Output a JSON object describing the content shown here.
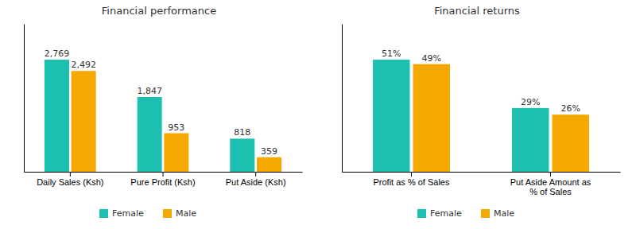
{
  "chart_data": [
    {
      "type": "bar",
      "title": "Financial performance",
      "categories": [
        "Daily Sales (Ksh)",
        "Pure Profit (Ksh)",
        "Put Aside (Ksh)"
      ],
      "series": [
        {
          "name": "Female",
          "color": "#1DBFB0",
          "values": [
            2769,
            1847,
            818
          ],
          "value_labels": [
            "2,769",
            "1,847",
            "818"
          ]
        },
        {
          "name": "Male",
          "color": "#F5A800",
          "values": [
            2492,
            953,
            359
          ],
          "value_labels": [
            "2,492",
            "953",
            "359"
          ]
        }
      ],
      "ylim": [
        0,
        3655.08
      ],
      "yticks": [],
      "grid": false,
      "legend": "bottom",
      "data_labels": true,
      "tick_labels": "x"
    },
    {
      "type": "bar",
      "title": "Financial returns",
      "categories": [
        "Profit as % of Sales",
        "Put Aside Amount as\n% of Sales"
      ],
      "series": [
        {
          "name": "Female",
          "color": "#1DBFB0",
          "values": [
            51,
            29
          ],
          "value_labels": [
            "51%",
            "29%"
          ]
        },
        {
          "name": "Male",
          "color": "#F5A800",
          "values": [
            49,
            26
          ],
          "value_labels": [
            "49%",
            "26%"
          ]
        }
      ],
      "ylim": [
        0,
        67.32
      ],
      "yticks": [],
      "grid": false,
      "legend": "bottom",
      "data_labels": true,
      "tick_labels": "x"
    }
  ]
}
